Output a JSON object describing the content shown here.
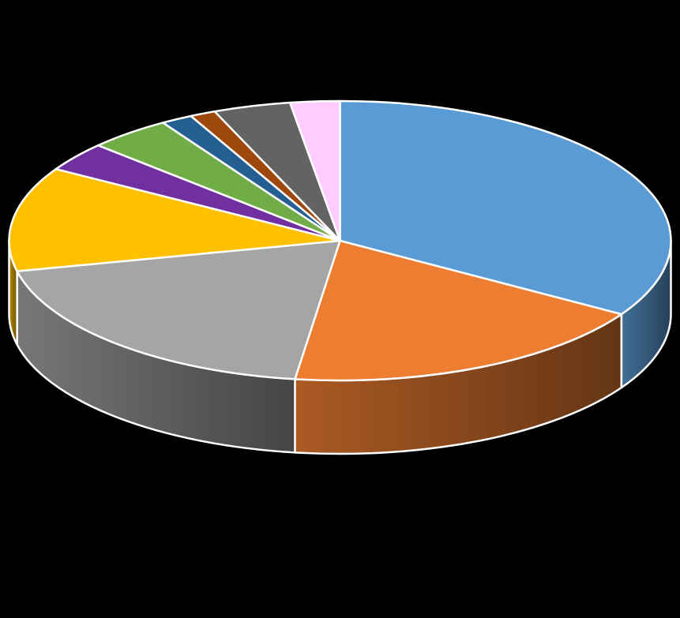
{
  "chart_data": {
    "type": "pie",
    "style": "3d-exploded-none",
    "title": "",
    "legend": "none",
    "data_labels": "none",
    "start_angle_deg": -90,
    "direction": "clockwise",
    "slices": [
      {
        "value": 35.0,
        "color": "#5B9BD5"
      },
      {
        "value": 19.0,
        "color": "#ED7D31"
      },
      {
        "value": 20.0,
        "color": "#A5A5A5"
      },
      {
        "value": 12.5,
        "color": "#FFC000"
      },
      {
        "value": 3.5,
        "color": "#7030A0"
      },
      {
        "value": 4.2,
        "color": "#70AD47"
      },
      {
        "value": 1.6,
        "color": "#255E91"
      },
      {
        "value": 1.3,
        "color": "#9E480E"
      },
      {
        "value": 3.9,
        "color": "#636363"
      },
      {
        "value": 2.5,
        "color": "#FFCCFF"
      }
    ]
  }
}
